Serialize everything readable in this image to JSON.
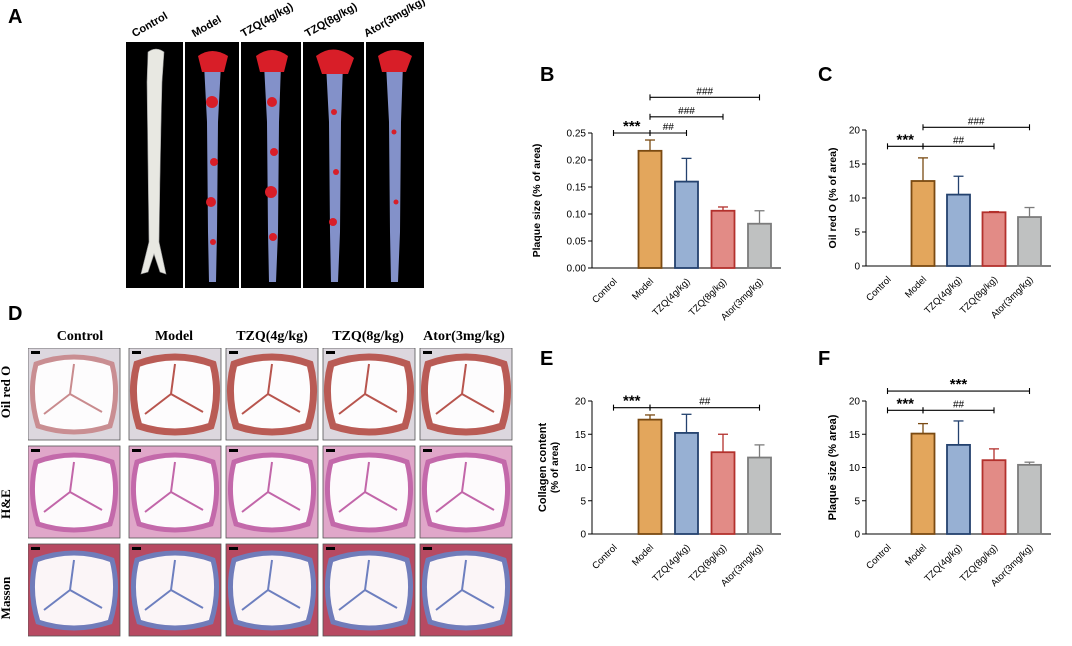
{
  "panels": {
    "A": "A",
    "B": "B",
    "C": "C",
    "D": "D",
    "E": "E",
    "F": "F"
  },
  "panelA": {
    "labels": [
      "Control",
      "Model",
      "TZQ(4g/kg)",
      "TZQ(8g/kg)",
      "Ator(3mg/kg)"
    ]
  },
  "panelD": {
    "columns": [
      "Control",
      "Model",
      "TZQ(4g/kg)",
      "TZQ(8g/kg)",
      "Ator(3mg/kg)"
    ],
    "rows": [
      "Oil red O",
      "H&E",
      "Masson"
    ]
  },
  "colors": {
    "Control": "#e3a65c",
    "Model": "#e3a65c",
    "TZQ4": "#97b0d3",
    "TZQ8": "#e28b86",
    "Ator": "#bfc1c1",
    "ModelEdge": "#7a4a12",
    "TZQ4Edge": "#24426e",
    "TZQ8Edge": "#b3312d",
    "AtorEdge": "#7c7c7c"
  },
  "chart_data": [
    {
      "id": "B",
      "type": "bar",
      "categories": [
        "Control",
        "Model",
        "TZQ(4g/kg)",
        "TZQ(8g/kg)",
        "Ator(3mg/kg)"
      ],
      "values": [
        0,
        0.217,
        0.16,
        0.106,
        0.082
      ],
      "errors": [
        0,
        0.02,
        0.043,
        0.007,
        0.024
      ],
      "ylabel": "Plaque size  (% of area)",
      "ylim": [
        0,
        0.25
      ],
      "yticks": [
        "0.00",
        "0.05",
        "0.10",
        "0.15",
        "0.20",
        "0.25"
      ],
      "annotations": [
        {
          "text": "***",
          "from": 0,
          "to": 1,
          "level": 0.25
        },
        {
          "text": "##",
          "from": 1,
          "to": 2,
          "level": 0.25
        },
        {
          "text": "###",
          "from": 1,
          "to": 3,
          "level": 0.28
        },
        {
          "text": "###",
          "from": 1,
          "to": 4,
          "level": 0.316
        }
      ]
    },
    {
      "id": "C",
      "type": "bar",
      "categories": [
        "Control",
        "Model",
        "TZQ(4g/kg)",
        "TZQ(8g/kg)",
        "Ator(3mg/kg)"
      ],
      "values": [
        0,
        12.5,
        10.5,
        7.9,
        7.2
      ],
      "errors": [
        0,
        3.4,
        2.7,
        0.1,
        1.4
      ],
      "ylabel": "Oil red O (% of area)",
      "ylim": [
        0,
        20
      ],
      "yticks": [
        "0",
        "5",
        "10",
        "15",
        "20"
      ],
      "annotations": [
        {
          "text": "***",
          "from": 0,
          "to": 1,
          "level": 17.6
        },
        {
          "text": "##",
          "from": 1,
          "to": 3,
          "level": 17.6
        },
        {
          "text": "###",
          "from": 1,
          "to": 4,
          "level": 20.4
        }
      ]
    },
    {
      "id": "E",
      "type": "bar",
      "categories": [
        "Control",
        "Model",
        "TZQ(4g/kg)",
        "TZQ(8g/kg)",
        "Ator(3mg/kg)"
      ],
      "values": [
        0,
        17.2,
        15.2,
        12.3,
        11.5
      ],
      "errors": [
        0,
        0.7,
        2.8,
        2.7,
        1.9
      ],
      "ylabel": "Collagen content",
      "ylabel2": "(% of area)",
      "ylim": [
        0,
        20
      ],
      "yticks": [
        "0",
        "5",
        "10",
        "15",
        "20"
      ],
      "annotations": [
        {
          "text": "***",
          "from": 0,
          "to": 1,
          "level": 19.0
        },
        {
          "text": "##",
          "from": 1,
          "to": 4,
          "level": 19.0
        }
      ]
    },
    {
      "id": "F",
      "type": "bar",
      "categories": [
        "Control",
        "Model",
        "TZQ(4g/kg)",
        "TZQ(8g/kg)",
        "Ator(3mg/kg)"
      ],
      "values": [
        0,
        15.1,
        13.4,
        11.1,
        10.4
      ],
      "errors": [
        0,
        1.5,
        3.6,
        1.7,
        0.4
      ],
      "ylabel": "Plaque size (% area)",
      "ylim": [
        0,
        20
      ],
      "yticks": [
        "0",
        "5",
        "10",
        "15",
        "20"
      ],
      "annotations": [
        {
          "text": "***",
          "from": 0,
          "to": 1,
          "level": 18.6
        },
        {
          "text": "##",
          "from": 1,
          "to": 3,
          "level": 18.6
        },
        {
          "text": "***",
          "from": 0,
          "to": 4,
          "level": 21.5
        }
      ]
    }
  ]
}
